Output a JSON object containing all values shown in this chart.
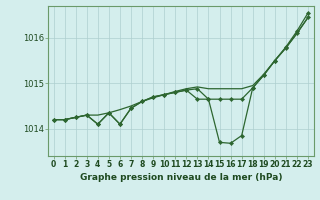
{
  "title": "Graphe pression niveau de la mer (hPa)",
  "bg_color": "#d4eeed",
  "line_color": "#2d6630",
  "grid_color": "#aecfcf",
  "axis_color": "#6a9a6a",
  "ylim": [
    1013.4,
    1016.7
  ],
  "xlim": [
    -0.5,
    23.5
  ],
  "yticks": [
    1014,
    1015,
    1016
  ],
  "xticks": [
    0,
    1,
    2,
    3,
    4,
    5,
    6,
    7,
    8,
    9,
    10,
    11,
    12,
    13,
    14,
    15,
    16,
    17,
    18,
    19,
    20,
    21,
    22,
    23
  ],
  "series1": [
    1014.2,
    1014.2,
    1014.25,
    1014.3,
    1014.3,
    1014.35,
    1014.42,
    1014.5,
    1014.6,
    1014.68,
    1014.75,
    1014.82,
    1014.88,
    1014.92,
    1014.88,
    1014.88,
    1014.88,
    1014.88,
    1014.95,
    1015.2,
    1015.5,
    1015.78,
    1016.1,
    1016.45
  ],
  "series2": [
    1014.2,
    1014.2,
    1014.25,
    1014.3,
    1014.1,
    1014.35,
    1014.1,
    1014.45,
    1014.6,
    1014.7,
    1014.75,
    1014.8,
    1014.85,
    1014.88,
    1014.65,
    1013.7,
    1013.68,
    1013.85,
    1014.9,
    1015.18,
    1015.5,
    1015.8,
    1016.15,
    1016.55
  ],
  "series3": [
    1014.2,
    1014.2,
    1014.25,
    1014.3,
    1014.1,
    1014.35,
    1014.1,
    1014.45,
    1014.6,
    1014.7,
    1014.75,
    1014.8,
    1014.85,
    1014.65,
    1014.65,
    1014.65,
    1014.65,
    1014.65,
    1014.9,
    1015.18,
    1015.5,
    1015.78,
    1016.1,
    1016.45
  ],
  "tick_fontsize": 5.5,
  "xlabel_fontsize": 6.5
}
